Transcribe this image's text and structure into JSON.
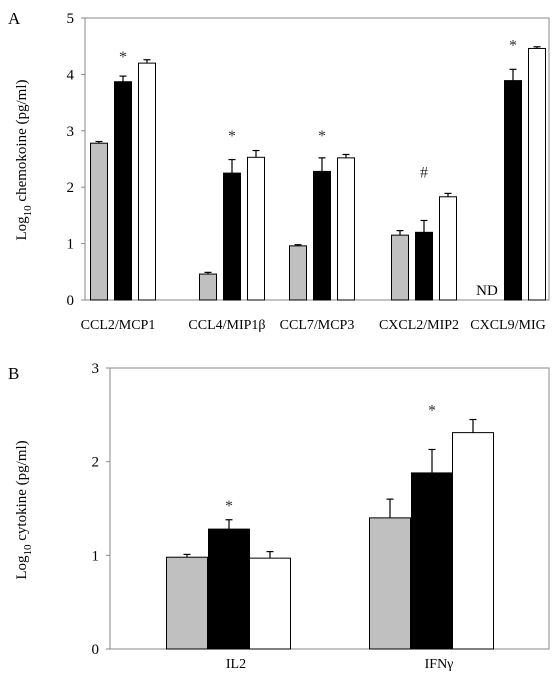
{
  "chart_data": [
    {
      "panel_label": "A",
      "type": "bar",
      "ylabel_main": "Log",
      "ylabel_sub": "10",
      "ylabel_rest": " chemokoine (pg/ml)",
      "ylim": [
        0,
        5
      ],
      "yticks": [
        "0",
        "1",
        "2",
        "3",
        "4",
        "5"
      ],
      "grid": false,
      "categories": [
        "CCL2/MCP1",
        "CCL4/MIP1β",
        "CCL7/MCP3",
        "CXCL2/MIP2",
        "CXCL9/MIG"
      ],
      "series": [
        {
          "color": "#c0c0c0",
          "values": [
            2.78,
            0.46,
            0.96,
            1.15,
            null
          ],
          "errors": [
            0.03,
            0.03,
            0.02,
            0.08,
            null
          ]
        },
        {
          "color": "#000000",
          "values": [
            3.87,
            2.25,
            2.28,
            1.2,
            3.89
          ],
          "errors": [
            0.1,
            0.24,
            0.24,
            0.21,
            0.2
          ]
        },
        {
          "color": "#ffffff",
          "values": [
            4.2,
            2.53,
            2.52,
            1.83,
            4.46
          ],
          "errors": [
            0.06,
            0.12,
            0.06,
            0.06,
            0.03
          ]
        }
      ],
      "annotations": [
        {
          "text": "*",
          "category": "CCL2/MCP1",
          "y": 4.4
        },
        {
          "text": "*",
          "category": "CCL4/MIP1β",
          "y": 3.0
        },
        {
          "text": "*",
          "category": "CCL7/MCP3",
          "y": 3.0
        },
        {
          "text": "#",
          "category": "CXCL2/MIP2",
          "y": 2.35
        },
        {
          "text": "*",
          "category": "CXCL9/MIG",
          "y": 4.6
        }
      ],
      "nd_label": {
        "text": "ND",
        "category": "CXCL9/MIG"
      }
    },
    {
      "panel_label": "B",
      "type": "bar",
      "ylabel_main": "Log",
      "ylabel_sub": "10",
      "ylabel_rest": " cytokine (pg/ml)",
      "ylim": [
        0,
        3
      ],
      "yticks": [
        "0",
        "1",
        "2",
        "3"
      ],
      "grid": false,
      "categories": [
        "IL2",
        "IFNγ"
      ],
      "series": [
        {
          "color": "#c0c0c0",
          "values": [
            0.98,
            1.4
          ],
          "errors": [
            0.03,
            0.2
          ]
        },
        {
          "color": "#000000",
          "values": [
            1.28,
            1.88
          ],
          "errors": [
            0.1,
            0.25
          ]
        },
        {
          "color": "#ffffff",
          "values": [
            0.97,
            2.31
          ],
          "errors": [
            0.07,
            0.14
          ]
        }
      ],
      "annotations": [
        {
          "text": "*",
          "category": "IL2",
          "y": 1.58
        },
        {
          "text": "*",
          "category": "IFNγ",
          "y": 2.6
        }
      ]
    }
  ]
}
